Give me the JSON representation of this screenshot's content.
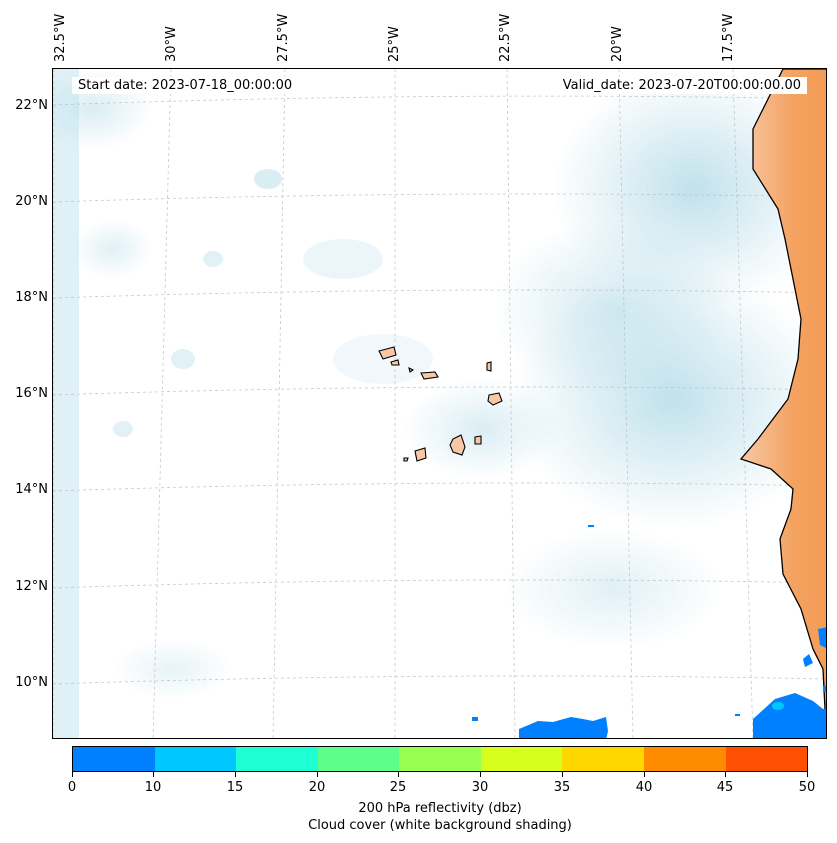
{
  "map": {
    "start_date": "Start date: 2023-07-18_00:00:00",
    "valid_date": "Valid_date: 2023-07-20T00:00:00.00",
    "lon_labels": [
      "32.5°W",
      "30°W",
      "27.5°W",
      "25°W",
      "22.5°W",
      "20°W",
      "17.5°W"
    ],
    "lat_labels": [
      "22°N",
      "20°N",
      "18°N",
      "16°N",
      "14°N",
      "12°N",
      "10°N"
    ],
    "land_color": "#f4a261",
    "cloud_color": "#add8e6",
    "reflectivity_color": "#0080ff",
    "coastline_color": "#000000",
    "gridlines": "dashed light gray"
  },
  "colorbar": {
    "ticks": [
      "0",
      "10",
      "15",
      "20",
      "25",
      "30",
      "35",
      "40",
      "45",
      "50"
    ],
    "colors": [
      "#0080ff",
      "#00c8ff",
      "#1effd4",
      "#5cff8a",
      "#96ff50",
      "#d7ff1e",
      "#ffd700",
      "#ff8c00",
      "#ff4f00"
    ],
    "label": "200 hPa reflectivity (dbz)",
    "sublabel": "Cloud cover (white background shading)"
  }
}
